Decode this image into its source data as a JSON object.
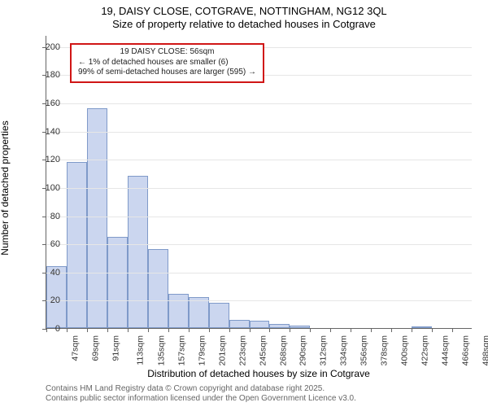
{
  "title_line1": "19, DAISY CLOSE, COTGRAVE, NOTTINGHAM, NG12 3QL",
  "title_line2": "Size of property relative to detached houses in Cotgrave",
  "x_axis_label": "Distribution of detached houses by size in Cotgrave",
  "y_axis_label": "Number of detached properties",
  "footer_line1": "Contains HM Land Registry data © Crown copyright and database right 2025.",
  "footer_line2": "Contains public sector information licensed under the Open Government Licence v3.0.",
  "callout": {
    "title": "19 DAISY CLOSE: 56sqm",
    "line1": "← 1% of detached houses are smaller (6)",
    "line2": "99% of semi-detached houses are larger (595) →",
    "border_color": "#d01616",
    "background_color": "#ffffff",
    "fontsize": 10
  },
  "histogram": {
    "type": "histogram",
    "bar_fill_color": "#cbd6ef",
    "bar_border_color": "#7f9ac9",
    "background_color": "#ffffff",
    "grid_color": "#e6e6e6",
    "axis_color": "#666666",
    "title_fontsize": 13,
    "axis_label_fontsize": 12,
    "tick_fontsize": 11,
    "xtick_rotation": -90,
    "ylim": [
      0,
      208
    ],
    "ytick_step": 20,
    "bar_width_ratio": 1.0,
    "bins": [
      {
        "label": "47sqm",
        "value": 44
      },
      {
        "label": "69sqm",
        "value": 118
      },
      {
        "label": "91sqm",
        "value": 156
      },
      {
        "label": "113sqm",
        "value": 65
      },
      {
        "label": "135sqm",
        "value": 108
      },
      {
        "label": "157sqm",
        "value": 56
      },
      {
        "label": "179sqm",
        "value": 24
      },
      {
        "label": "201sqm",
        "value": 22
      },
      {
        "label": "223sqm",
        "value": 18
      },
      {
        "label": "245sqm",
        "value": 6
      },
      {
        "label": "268sqm",
        "value": 5
      },
      {
        "label": "290sqm",
        "value": 3
      },
      {
        "label": "312sqm",
        "value": 2
      },
      {
        "label": "334sqm",
        "value": 0
      },
      {
        "label": "356sqm",
        "value": 0
      },
      {
        "label": "378sqm",
        "value": 0
      },
      {
        "label": "400sqm",
        "value": 0
      },
      {
        "label": "422sqm",
        "value": 0
      },
      {
        "label": "444sqm",
        "value": 1
      },
      {
        "label": "466sqm",
        "value": 0
      },
      {
        "label": "488sqm",
        "value": 0
      }
    ]
  }
}
